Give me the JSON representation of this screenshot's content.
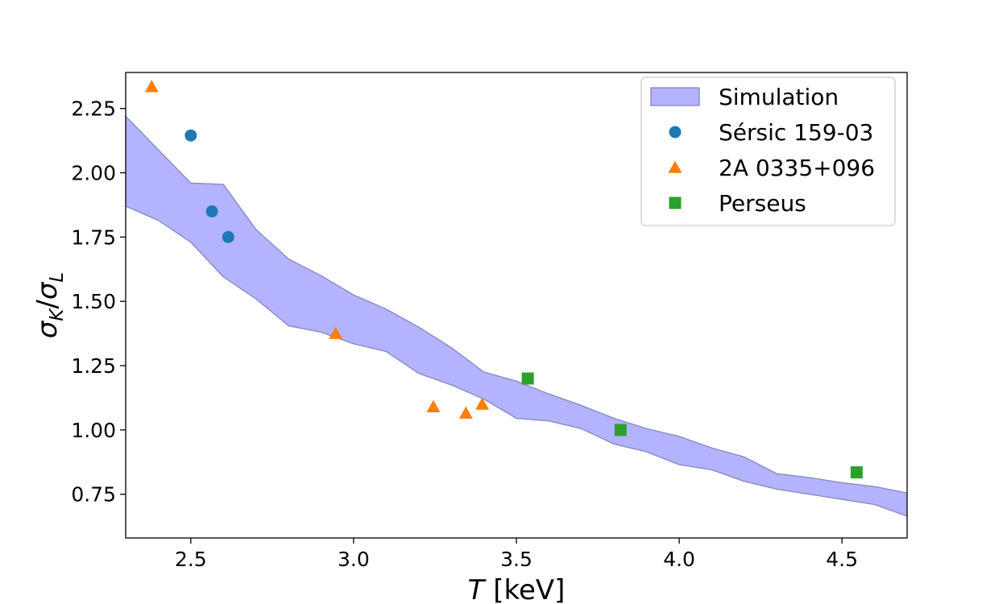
{
  "chart_data": {
    "type": "scatter",
    "xlabel_italic": "T",
    "xlabel_rest": " [keV]",
    "ylabel": {
      "sym1": "σ",
      "sub1": "K",
      "slash": "/",
      "sym2": "σ",
      "sub2": "L"
    },
    "xlim": [
      2.3,
      4.7
    ],
    "ylim": [
      0.58,
      2.39
    ],
    "x_ticks": [
      {
        "value": 2.5,
        "label": "2.5"
      },
      {
        "value": 3.0,
        "label": "3.0"
      },
      {
        "value": 3.5,
        "label": "3.5"
      },
      {
        "value": 4.0,
        "label": "4.0"
      },
      {
        "value": 4.5,
        "label": "4.5"
      }
    ],
    "y_ticks": [
      {
        "value": 0.75,
        "label": "0.75"
      },
      {
        "value": 1.0,
        "label": "1.00"
      },
      {
        "value": 1.25,
        "label": "1.25"
      },
      {
        "value": 1.5,
        "label": "1.50"
      },
      {
        "value": 1.75,
        "label": "1.75"
      },
      {
        "value": 2.0,
        "label": "2.00"
      },
      {
        "value": 2.25,
        "label": "2.25"
      }
    ],
    "band": {
      "name": "Simulation",
      "color": "#b3b3ff",
      "edge_color": "#8585c2",
      "x": [
        2.3,
        2.4,
        2.5,
        2.6,
        2.7,
        2.8,
        2.9,
        3.0,
        3.1,
        3.2,
        3.3,
        3.4,
        3.5,
        3.6,
        3.7,
        3.8,
        3.9,
        4.0,
        4.1,
        4.2,
        4.3,
        4.4,
        4.5,
        4.6,
        4.7
      ],
      "upper": [
        2.22,
        2.09,
        1.96,
        1.955,
        1.78,
        1.665,
        1.6,
        1.525,
        1.47,
        1.4,
        1.32,
        1.225,
        1.19,
        1.14,
        1.095,
        1.045,
        1.005,
        0.975,
        0.93,
        0.895,
        0.83,
        0.815,
        0.795,
        0.78,
        0.755
      ],
      "lower": [
        1.87,
        1.815,
        1.73,
        1.595,
        1.51,
        1.405,
        1.38,
        1.335,
        1.305,
        1.22,
        1.175,
        1.12,
        1.045,
        1.035,
        1.005,
        0.945,
        0.915,
        0.865,
        0.845,
        0.8,
        0.77,
        0.75,
        0.73,
        0.71,
        0.665
      ]
    },
    "series": [
      {
        "name": "Sérsic 159-03",
        "marker": "circle",
        "color": "#1f77b4",
        "points": [
          [
            2.5,
            2.145
          ],
          [
            2.565,
            1.85
          ],
          [
            2.615,
            1.75
          ]
        ]
      },
      {
        "name": "2A 0335+096",
        "marker": "triangle",
        "color": "#ff7f0e",
        "points": [
          [
            2.38,
            2.335
          ],
          [
            2.945,
            1.375
          ],
          [
            3.245,
            1.09
          ],
          [
            3.345,
            1.065
          ],
          [
            3.395,
            1.1
          ]
        ]
      },
      {
        "name": "Perseus",
        "marker": "square",
        "color": "#2ca02c",
        "points": [
          [
            3.535,
            1.2
          ],
          [
            3.82,
            1.0
          ],
          [
            4.545,
            0.835
          ]
        ]
      }
    ],
    "legend_position": "top-right"
  }
}
